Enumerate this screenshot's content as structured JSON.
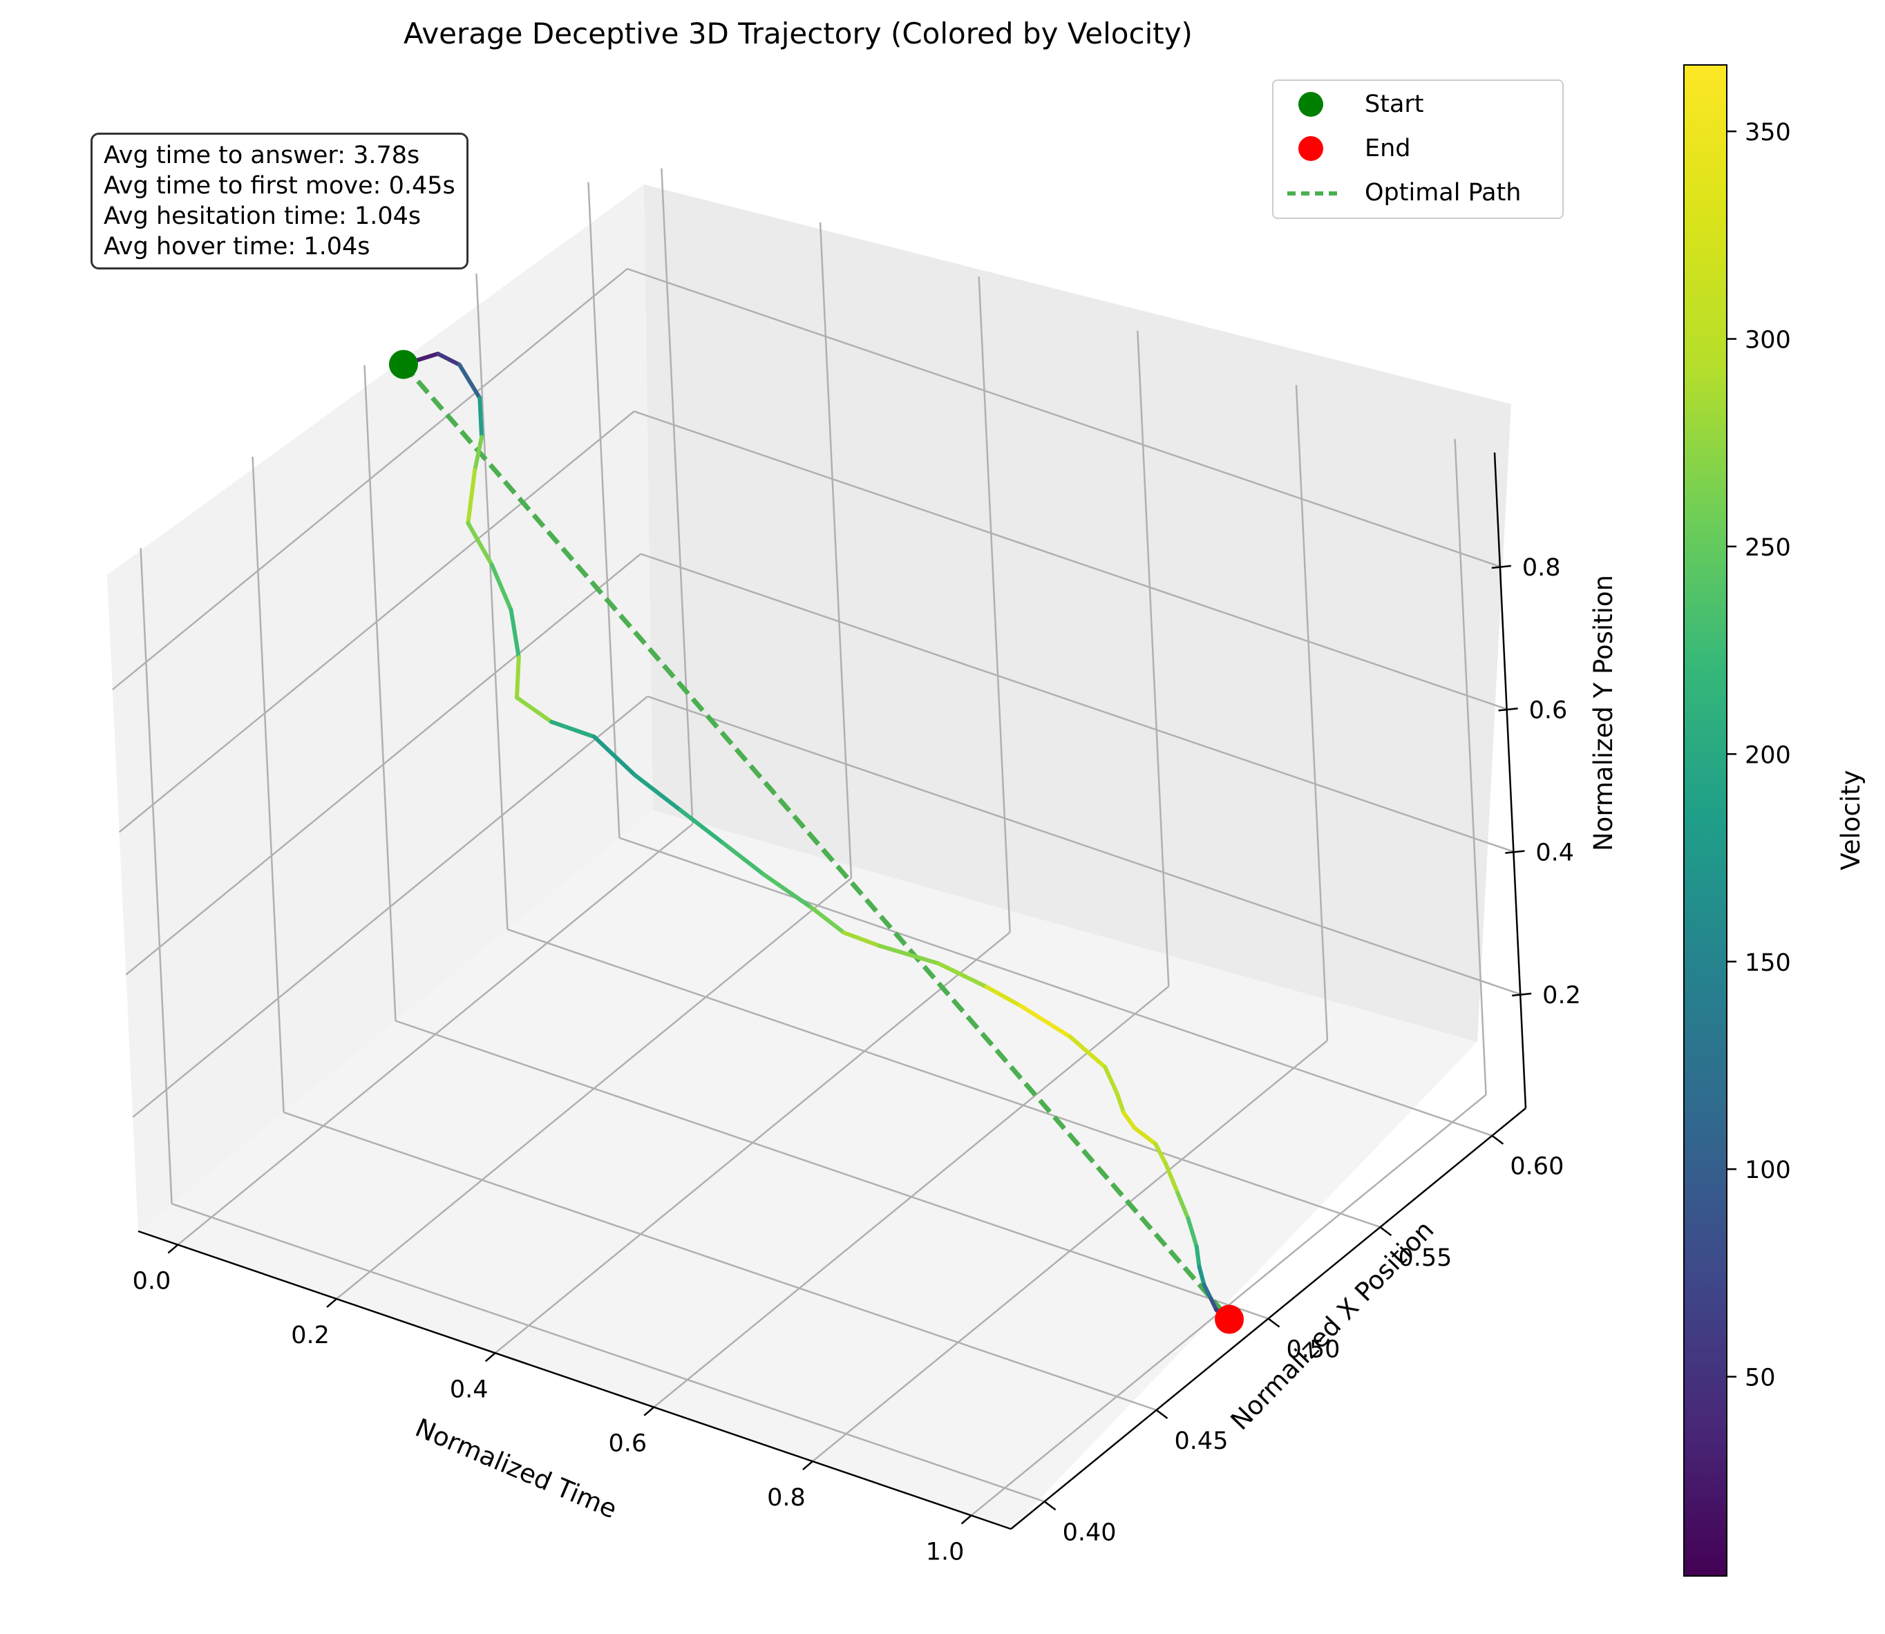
{
  "title": "Average Deceptive 3D Trajectory (Colored by Velocity)",
  "stats": [
    "Avg time to answer: 3.78s",
    "Avg time to first move: 0.45s",
    "Avg hesitation time: 1.04s",
    "Avg hover time: 1.04s"
  ],
  "legend": {
    "start": "Start",
    "end": "End",
    "optimal": "Optimal Path"
  },
  "colors": {
    "start": "#008000",
    "end": "#ff0000",
    "optimal": "#4caf50"
  },
  "chart_data": {
    "type": "line3d",
    "title": "Average Deceptive 3D Trajectory (Colored by Velocity)",
    "xlabel": "Normalized Time",
    "ylabel": "Normalized X Position",
    "zlabel": "Normalized Y Position",
    "colorbar_label": "Velocity",
    "time_ticks": [
      "0.0",
      "0.2",
      "0.4",
      "0.6",
      "0.8",
      "1.0"
    ],
    "xpos_ticks": [
      "0.40",
      "0.45",
      "0.50",
      "0.55",
      "0.60"
    ],
    "ypos_ticks": [
      "0.2",
      "0.4",
      "0.6",
      "0.8"
    ],
    "colorbar_ticks": [
      "50",
      "100",
      "150",
      "200",
      "250",
      "300",
      "350"
    ],
    "velocity_range": [
      2,
      366
    ],
    "colormap": "viridis",
    "start_point": {
      "time": 0.0,
      "x": 0.5,
      "y": 0.98
    },
    "end_point": {
      "time": 1.0,
      "x": 0.5,
      "y": 0.02
    },
    "optimal_path": [
      {
        "time": 0.0,
        "x": 0.5,
        "y": 0.98
      },
      {
        "time": 1.0,
        "x": 0.5,
        "y": 0.02
      }
    ],
    "trajectory": {
      "columns": [
        "time",
        "x",
        "y",
        "velocity"
      ],
      "points": [
        [
          0.0,
          0.5,
          0.98,
          20
        ],
        [
          0.015,
          0.51,
          0.975,
          40
        ],
        [
          0.03,
          0.514,
          0.955,
          70
        ],
        [
          0.048,
          0.516,
          0.91,
          140
        ],
        [
          0.06,
          0.512,
          0.87,
          230
        ],
        [
          0.07,
          0.505,
          0.845,
          300
        ],
        [
          0.085,
          0.496,
          0.8,
          280
        ],
        [
          0.095,
          0.502,
          0.73,
          250
        ],
        [
          0.105,
          0.506,
          0.66,
          230
        ],
        [
          0.115,
          0.505,
          0.6,
          220
        ],
        [
          0.125,
          0.5,
          0.56,
          340
        ],
        [
          0.15,
          0.506,
          0.52,
          210
        ],
        [
          0.18,
          0.514,
          0.49,
          200
        ],
        [
          0.23,
          0.514,
          0.455,
          160
        ],
        [
          0.28,
          0.516,
          0.42,
          220
        ],
        [
          0.33,
          0.517,
          0.39,
          210
        ],
        [
          0.38,
          0.517,
          0.365,
          250
        ],
        [
          0.43,
          0.52,
          0.33,
          230
        ],
        [
          0.47,
          0.52,
          0.31,
          290
        ],
        [
          0.5,
          0.525,
          0.29,
          280
        ],
        [
          0.56,
          0.53,
          0.275,
          260
        ],
        [
          0.62,
          0.53,
          0.265,
          300
        ],
        [
          0.65,
          0.534,
          0.24,
          360
        ],
        [
          0.7,
          0.538,
          0.205,
          340
        ],
        [
          0.74,
          0.539,
          0.175,
          300
        ],
        [
          0.76,
          0.537,
          0.15,
          290
        ],
        [
          0.77,
          0.536,
          0.13,
          300
        ],
        [
          0.78,
          0.537,
          0.11,
          360
        ],
        [
          0.8,
          0.539,
          0.09,
          290
        ],
        [
          0.815,
          0.538,
          0.07,
          300
        ],
        [
          0.84,
          0.534,
          0.05,
          280
        ],
        [
          0.87,
          0.528,
          0.04,
          250
        ],
        [
          0.9,
          0.521,
          0.03,
          220
        ],
        [
          0.92,
          0.515,
          0.025,
          200
        ],
        [
          0.94,
          0.51,
          0.02,
          150
        ],
        [
          0.96,
          0.506,
          0.018,
          100
        ],
        [
          0.975,
          0.503,
          0.016,
          70
        ],
        [
          0.99,
          0.501,
          0.018,
          40
        ],
        [
          1.0,
          0.5,
          0.02,
          30
        ]
      ]
    }
  }
}
